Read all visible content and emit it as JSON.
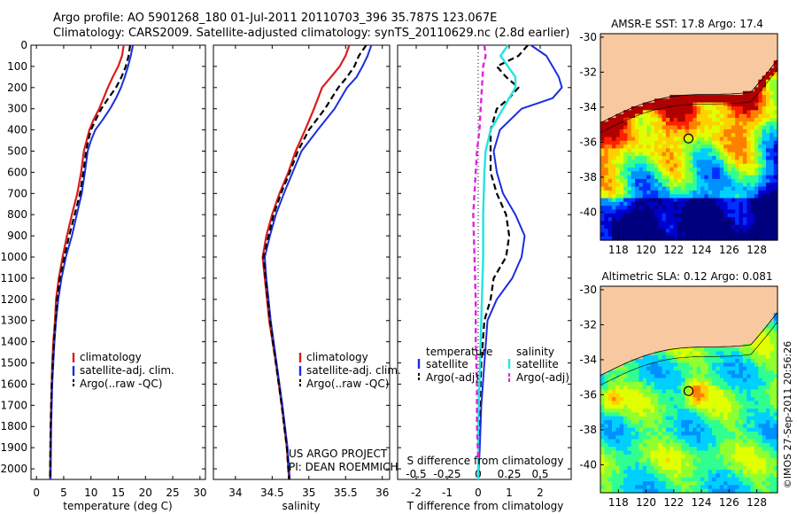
{
  "title_line1": "Argo profile: AO 5901268_180 01-Jul-2011 20110703_396 35.787S 123.067E",
  "title_line2": "Climatology: CARS2009. Satellite-adjusted climatology: synTS_20110629.nc (2.8d earlier)",
  "project_line1": "US ARGO PROJECT",
  "project_line2": "PI: DEAN ROEMMICH",
  "credit": "©IMOS 27-Sep-2011 20:56:26",
  "depth_ticks": [
    "0",
    "100",
    "200",
    "300",
    "400",
    "500",
    "600",
    "700",
    "800",
    "900",
    "1000",
    "1100",
    "1200",
    "1300",
    "1400",
    "1500",
    "1600",
    "1700",
    "1800",
    "1900",
    "2000"
  ],
  "colors": {
    "clim": "#dd1c1c",
    "sat": "#1a2ee0",
    "argo": "#000000",
    "s_sat": "#22e4e4",
    "s_argo": "#e020e0",
    "land": "#f8c8a0"
  },
  "chart_data": [
    {
      "type": "line",
      "id": "temperature",
      "xlabel": "temperature (deg C)",
      "xlim": [
        -1,
        31
      ],
      "ylim": [
        0,
        2050
      ],
      "xticks": [
        0,
        5,
        10,
        15,
        20,
        25,
        30
      ],
      "xtick_labels": [
        "0",
        "5",
        "10",
        "15",
        "20",
        "25",
        "30"
      ],
      "legend": [
        "climatology",
        "satellite-adj. clim.",
        "Argo(..raw -QC)"
      ],
      "series": [
        {
          "name": "climatology",
          "style": "clim",
          "x": [
            16.0,
            15.7,
            15.0,
            14.0,
            13.1,
            12.3,
            11.5,
            10.5,
            9.7,
            9.2,
            8.7,
            8.2,
            7.5,
            6.5,
            5.6,
            4.8,
            4.1,
            3.6,
            3.4,
            3.1,
            2.9,
            2.8,
            2.6,
            2.5
          ],
          "y": [
            0,
            50,
            100,
            150,
            200,
            250,
            300,
            350,
            400,
            450,
            500,
            600,
            700,
            800,
            900,
            1000,
            1100,
            1200,
            1300,
            1400,
            1500,
            1600,
            1800,
            2050
          ]
        },
        {
          "name": "satellite-adj. clim.",
          "style": "sat",
          "x": [
            17.7,
            17.3,
            16.8,
            16.2,
            15.5,
            14.6,
            13.5,
            12.2,
            10.8,
            10.0,
            9.4,
            8.9,
            8.3,
            7.4,
            6.5,
            5.4,
            4.6,
            4.0,
            3.6,
            3.3,
            3.1,
            2.9,
            2.7,
            2.6
          ],
          "y": [
            0,
            50,
            100,
            150,
            200,
            250,
            300,
            350,
            400,
            450,
            500,
            600,
            700,
            800,
            900,
            1000,
            1100,
            1200,
            1300,
            1400,
            1500,
            1600,
            1800,
            2050
          ]
        },
        {
          "name": "Argo(..raw -QC)",
          "style": "argo",
          "x": [
            17.2,
            16.9,
            16.4,
            15.6,
            14.6,
            13.2,
            11.9,
            10.9,
            10.0,
            9.5,
            9.1,
            8.6,
            8.0,
            7.0,
            6.0,
            5.1,
            4.3,
            3.8,
            3.5,
            3.2,
            3.0,
            2.8,
            2.6,
            2.5
          ],
          "y": [
            0,
            50,
            100,
            150,
            200,
            250,
            300,
            350,
            400,
            450,
            500,
            600,
            700,
            800,
            900,
            1000,
            1100,
            1200,
            1300,
            1400,
            1500,
            1600,
            1800,
            2050
          ]
        }
      ]
    },
    {
      "type": "line",
      "id": "salinity",
      "xlabel": "salinity",
      "xlim": [
        33.7,
        36.1
      ],
      "ylim": [
        0,
        2050
      ],
      "xticks": [
        34,
        34.5,
        35,
        35.5,
        36
      ],
      "xtick_labels": [
        "34",
        "34.5",
        "35",
        "35.5",
        "36"
      ],
      "legend": [
        "climatology",
        "satellite-adj. clim.",
        "Argo(..raw -QC)"
      ],
      "series": [
        {
          "name": "climatology",
          "style": "clim",
          "x": [
            35.55,
            35.5,
            35.42,
            35.3,
            35.18,
            35.07,
            34.95,
            34.82,
            34.72,
            34.6,
            34.5,
            34.42,
            34.37,
            34.4,
            34.46,
            34.55,
            34.63,
            34.7,
            34.73
          ],
          "y": [
            0,
            50,
            100,
            150,
            200,
            300,
            400,
            500,
            600,
            700,
            800,
            900,
            1000,
            1100,
            1300,
            1500,
            1700,
            1900,
            2050
          ]
        },
        {
          "name": "satellite-adj. clim.",
          "style": "sat",
          "x": [
            35.85,
            35.8,
            35.73,
            35.65,
            35.52,
            35.35,
            35.12,
            34.9,
            34.78,
            34.66,
            34.55,
            34.47,
            34.4,
            34.42,
            34.48,
            34.56,
            34.64,
            34.71,
            34.74
          ],
          "y": [
            0,
            50,
            100,
            150,
            200,
            300,
            400,
            500,
            600,
            700,
            800,
            900,
            1000,
            1100,
            1300,
            1500,
            1700,
            1900,
            2050
          ]
        },
        {
          "name": "Argo(..raw -QC)",
          "style": "argo",
          "x": [
            35.78,
            35.68,
            35.62,
            35.52,
            35.4,
            35.22,
            35.0,
            34.85,
            34.74,
            34.62,
            34.52,
            34.45,
            34.38,
            34.41,
            34.47,
            34.55,
            34.63,
            34.7,
            34.73
          ],
          "y": [
            0,
            50,
            100,
            150,
            200,
            300,
            400,
            500,
            600,
            700,
            800,
            900,
            1000,
            1100,
            1300,
            1500,
            1700,
            1900,
            2050
          ]
        }
      ]
    },
    {
      "type": "line",
      "id": "difference",
      "xlabel": "T difference from climatology",
      "xlabel_top": "S difference from climatology",
      "xlim": [
        -2.6,
        3.0
      ],
      "ylim": [
        0,
        2050
      ],
      "xticks": [
        -2,
        -1,
        0,
        1,
        2
      ],
      "xtick_labels": [
        "-2",
        "-1",
        "0",
        "1",
        "2"
      ],
      "s_ticks": [
        -0.5,
        -0.25,
        0,
        0.25,
        0.5
      ],
      "s_tick_labels": [
        "-0.5",
        "-0.25",
        "0",
        "0.25",
        "0.5"
      ],
      "s_scale": 4,
      "legend_headers": [
        "temperature",
        "salinity"
      ],
      "legend": [
        "satellite",
        "Argo(-adj)",
        "satellite",
        "Argo(-adj)"
      ],
      "series": [
        {
          "name": "T satellite",
          "style": "sat",
          "x": [
            1.7,
            2.2,
            2.4,
            2.6,
            2.7,
            2.4,
            1.4,
            0.7,
            0.5,
            0.6,
            0.8,
            1.2,
            1.5,
            1.4,
            1.1,
            0.6,
            0.3,
            0.2,
            0.1,
            0.05,
            0.0
          ],
          "y": [
            0,
            50,
            100,
            150,
            200,
            250,
            300,
            400,
            500,
            600,
            700,
            800,
            900,
            1000,
            1100,
            1200,
            1300,
            1500,
            1700,
            1900,
            2050
          ]
        },
        {
          "name": "T Argo(-adj)",
          "style": "argo",
          "x": [
            1.6,
            1.3,
            0.6,
            0.9,
            1.3,
            1.0,
            0.6,
            0.4,
            0.4,
            0.4,
            0.6,
            0.9,
            1.0,
            0.9,
            0.5,
            0.4,
            0.2,
            0.1,
            0.05,
            0.0
          ],
          "y": [
            0,
            50,
            100,
            150,
            200,
            250,
            300,
            400,
            500,
            600,
            700,
            800,
            900,
            1000,
            1100,
            1200,
            1300,
            1500,
            1700,
            1900
          ]
        },
        {
          "name": "S satellite",
          "style": "s_sat",
          "x": [
            0.24,
            0.18,
            0.24,
            0.3,
            0.3,
            0.2,
            0.1,
            0.06,
            0.05,
            0.04,
            0.04,
            0.03,
            0.02,
            0.01,
            0.0,
            0.0
          ],
          "y": [
            0,
            50,
            100,
            150,
            200,
            300,
            400,
            500,
            600,
            800,
            1000,
            1200,
            1400,
            1600,
            1800,
            2050
          ]
        },
        {
          "name": "S Argo(-adj)",
          "style": "s_argo",
          "x": [
            0.05,
            0.06,
            0.04,
            0.03,
            0.02,
            0.01,
            -0.01,
            -0.02,
            -0.03,
            -0.04,
            -0.03,
            -0.02,
            -0.02,
            -0.01,
            -0.01,
            0.0
          ],
          "y": [
            0,
            50,
            100,
            200,
            300,
            400,
            500,
            600,
            700,
            800,
            1000,
            1200,
            1400,
            1600,
            1800,
            1950
          ]
        }
      ]
    },
    {
      "type": "heatmap",
      "id": "sst-map",
      "title": "AMSR-E SST: 17.8  Argo: 17.4",
      "xlim": [
        116.7,
        129.5
      ],
      "ylim": [
        -41.6,
        -29.8
      ],
      "xticks": [
        118,
        120,
        122,
        124,
        126,
        128
      ],
      "xtick_labels": [
        "118",
        "120",
        "122",
        "124",
        "126",
        "128"
      ],
      "yticks": [
        -30,
        -32,
        -34,
        -36,
        -38,
        -40
      ],
      "ytick_labels": [
        "-30",
        "-32",
        "-34",
        "-36",
        "-38",
        "-40"
      ],
      "marker": {
        "lon": 123.067,
        "lat": -35.787
      },
      "palette": [
        "#00007f",
        "#0000cc",
        "#0030ff",
        "#0090ff",
        "#00d0ff",
        "#30ff90",
        "#90ff30",
        "#e0ff00",
        "#ffd000",
        "#ff8000",
        "#ff2000",
        "#b00000"
      ]
    },
    {
      "type": "heatmap",
      "id": "sla-map",
      "title": "Altimetric SLA: 0.12  Argo: 0.081",
      "xlim": [
        116.7,
        129.5
      ],
      "ylim": [
        -41.6,
        -29.8
      ],
      "xticks": [
        118,
        120,
        122,
        124,
        126,
        128
      ],
      "xtick_labels": [
        "118",
        "120",
        "122",
        "124",
        "126",
        "128"
      ],
      "yticks": [
        -30,
        -32,
        -34,
        -36,
        -38,
        -40
      ],
      "ytick_labels": [
        "-30",
        "-32",
        "-34",
        "-36",
        "-38",
        "-40"
      ],
      "marker": {
        "lon": 123.067,
        "lat": -35.787
      },
      "palette": [
        "#00007f",
        "#0000cc",
        "#0030ff",
        "#0090ff",
        "#00d0ff",
        "#30ff90",
        "#90ff30",
        "#e0ff00",
        "#ffd000",
        "#ff8000",
        "#ff2000",
        "#b00000"
      ]
    }
  ]
}
